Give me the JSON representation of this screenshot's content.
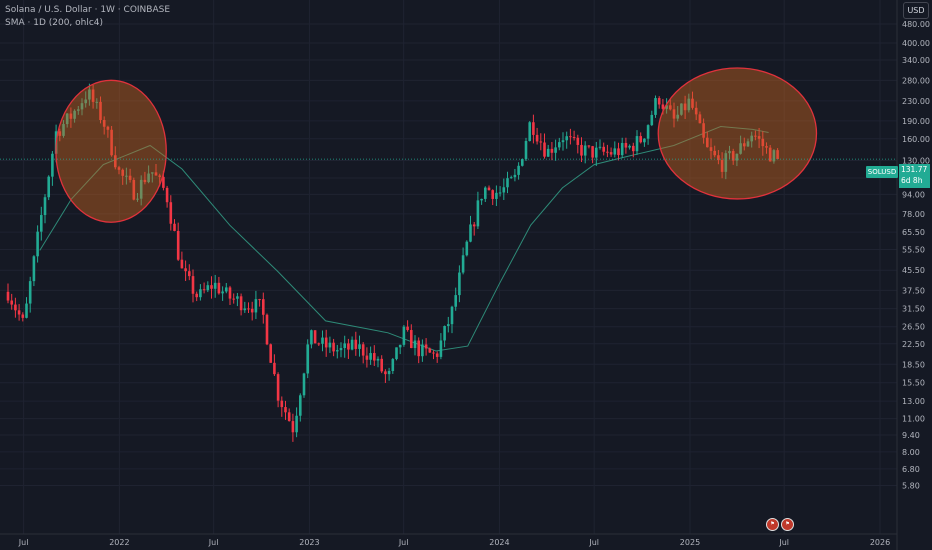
{
  "header": {
    "symbol_line": "Solana / U.S. Dollar · 1W · COINBASE",
    "indicator_line": "SMA · 1D (200, ohlc4)"
  },
  "currency_button": "USD",
  "price_label": {
    "ticker": "SOLUSD",
    "price": "131.77",
    "countdown": "6d 8h"
  },
  "colors": {
    "background": "#151924",
    "up": "#22ab94",
    "down": "#f23645",
    "sma": "#2e8b78",
    "circle_fill": "#c8641e",
    "circle_stroke": "#e0323c",
    "axis_text": "#b2b5be"
  },
  "events": [
    "flag-icon",
    "flag-icon"
  ],
  "chart_data": {
    "type": "candlestick",
    "title": "Solana / U.S. Dollar · 1W · COINBASE",
    "scale": "log",
    "y_ticks": [
      "480.00",
      "400.00",
      "340.00",
      "280.00",
      "230.00",
      "190.00",
      "160.00",
      "130.00",
      "110.00",
      "94.00",
      "78.00",
      "65.50",
      "55.50",
      "45.50",
      "37.50",
      "31.50",
      "26.50",
      "22.50",
      "18.50",
      "15.50",
      "13.00",
      "11.00",
      "9.40",
      "8.00",
      "6.80",
      "5.80"
    ],
    "x_ticks": [
      "Jul",
      "2022",
      "Jul",
      "2023",
      "Jul",
      "2024",
      "Jul",
      "2025",
      "Jul",
      "2026"
    ],
    "last_price": 131.77,
    "grid": true,
    "anchors": [
      [
        "2021-06",
        37
      ],
      [
        "2021-07",
        27
      ],
      [
        "2021-08",
        70
      ],
      [
        "2021-09",
        170
      ],
      [
        "2021-10",
        200
      ],
      [
        "2021-11",
        250
      ],
      [
        "2021-12",
        190
      ],
      [
        "2022-01",
        115
      ],
      [
        "2022-02",
        95
      ],
      [
        "2022-03",
        120
      ],
      [
        "2022-04",
        95
      ],
      [
        "2022-05",
        45
      ],
      [
        "2022-06",
        35
      ],
      [
        "2022-07",
        40
      ],
      [
        "2022-08",
        35
      ],
      [
        "2022-09",
        33
      ],
      [
        "2022-10",
        32
      ],
      [
        "2022-11",
        14
      ],
      [
        "2022-12",
        10
      ],
      [
        "2023-01",
        24
      ],
      [
        "2023-02",
        22
      ],
      [
        "2023-03",
        21
      ],
      [
        "2023-04",
        22
      ],
      [
        "2023-05",
        20
      ],
      [
        "2023-06",
        16
      ],
      [
        "2023-07",
        25
      ],
      [
        "2023-08",
        21
      ],
      [
        "2023-09",
        20
      ],
      [
        "2023-10",
        30
      ],
      [
        "2023-11",
        60
      ],
      [
        "2023-12",
        100
      ],
      [
        "2024-01",
        95
      ],
      [
        "2024-02",
        110
      ],
      [
        "2024-03",
        190
      ],
      [
        "2024-04",
        140
      ],
      [
        "2024-05",
        165
      ],
      [
        "2024-06",
        145
      ],
      [
        "2024-07",
        140
      ],
      [
        "2024-08",
        140
      ],
      [
        "2024-09",
        145
      ],
      [
        "2024-10",
        160
      ],
      [
        "2024-11",
        240
      ],
      [
        "2024-12",
        190
      ],
      [
        "2025-01",
        230
      ],
      [
        "2025-02",
        145
      ],
      [
        "2025-03",
        125
      ],
      [
        "2025-04",
        140
      ],
      [
        "2025-05",
        170
      ],
      [
        "2025-06",
        140
      ],
      [
        "2025-06-23",
        131.77
      ]
    ],
    "sma": [
      [
        "2021-08",
        55
      ],
      [
        "2021-10",
        90
      ],
      [
        "2021-12",
        125
      ],
      [
        "2022-03",
        150
      ],
      [
        "2022-05",
        120
      ],
      [
        "2022-08",
        70
      ],
      [
        "2022-11",
        45
      ],
      [
        "2023-02",
        28
      ],
      [
        "2023-06",
        25
      ],
      [
        "2023-09",
        21
      ],
      [
        "2023-11",
        22
      ],
      [
        "2024-01",
        40
      ],
      [
        "2024-03",
        70
      ],
      [
        "2024-05",
        100
      ],
      [
        "2024-07",
        125
      ],
      [
        "2024-09",
        135
      ],
      [
        "2024-12",
        150
      ],
      [
        "2025-03",
        180
      ],
      [
        "2025-05",
        175
      ],
      [
        "2025-06",
        170
      ]
    ],
    "annotations": [
      {
        "type": "ellipse",
        "x_start": "2021-09",
        "x_end": "2022-04",
        "y_low": 72,
        "y_high": 280
      },
      {
        "type": "ellipse",
        "x_start": "2024-11",
        "x_end": "2025-09",
        "y_low": 90,
        "y_high": 315
      }
    ]
  }
}
